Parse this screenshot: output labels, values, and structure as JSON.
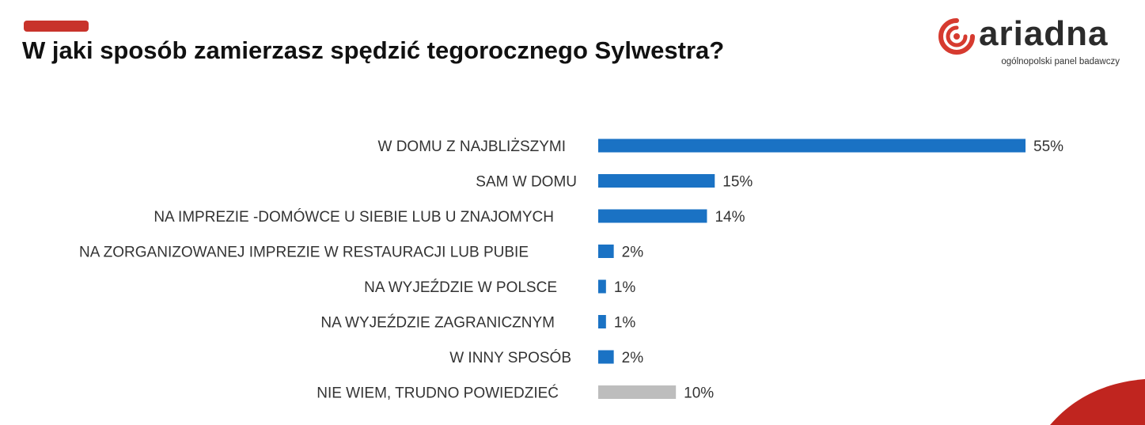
{
  "header": {
    "title": "W jaki sposób zamierzasz spędzić tegorocznego Sylwestra?"
  },
  "logo": {
    "name": "ariadna",
    "tagline": "ogólnopolski panel badawczy"
  },
  "colors": {
    "accent": "#c8332b",
    "bar_primary": "#1a72c4",
    "bar_neutral": "#bdbdbd",
    "text": "#333333"
  },
  "chart_data": {
    "type": "bar",
    "orientation": "horizontal",
    "categories": [
      "W DOMU Z NAJBLIŻSZYMI",
      "SAM W DOMU",
      "NA IMPREZIE   -DOMÓWCE U SIEBIE LUB U ZNAJOMYCH",
      "NA ZORGANIZOWANEJ IMPREZIE W RESTAURACJI LUB PUBIE",
      "NA WYJEŹDZIE W POLSCE",
      "NA WYJEŹDZIE ZAGRANICZNYM",
      "W INNY SPOSÓB",
      "NIE WIEM, TRUDNO POWIEDZIEĆ"
    ],
    "values": [
      55,
      15,
      14,
      2,
      1,
      1,
      2,
      10
    ],
    "value_labels": [
      "55%",
      "15%",
      "14%",
      "2%",
      "1%",
      "1%",
      "2%",
      "10%"
    ],
    "bar_colors": [
      "#1a72c4",
      "#1a72c4",
      "#1a72c4",
      "#1a72c4",
      "#1a72c4",
      "#1a72c4",
      "#1a72c4",
      "#bdbdbd"
    ],
    "unit": "%",
    "xlim": [
      0,
      55
    ],
    "grid": false,
    "legend": "none"
  }
}
